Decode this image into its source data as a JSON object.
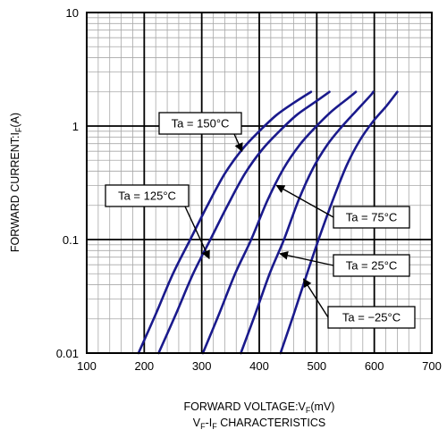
{
  "chart_data": {
    "type": "line",
    "title": "V_F-I_F CHARACTERISTICS",
    "title_main": "V",
    "title_sub": "F",
    "title_mid": "-I",
    "title_sub2": "F",
    "title_tail": " CHARACTERISTICS",
    "xlabel_main": "FORWARD VOLTAGE:V",
    "xlabel_sub": "F",
    "xlabel_tail": "(mV)",
    "ylabel_main": "FORWARD CURRENT:I",
    "ylabel_sub": "F",
    "ylabel_tail": "(A)",
    "xlim": [
      100,
      700
    ],
    "ylim": [
      0.01,
      10
    ],
    "y_scale": "log",
    "grid": true,
    "x_ticks": [
      100,
      200,
      300,
      400,
      500,
      600,
      700
    ],
    "x_tick_labels": [
      "100",
      "200",
      "300",
      "400",
      "500",
      "600",
      "700"
    ],
    "y_ticks": [
      0.01,
      0.1,
      1,
      10
    ],
    "y_tick_labels": [
      "0.01",
      "0.1",
      "1",
      "10"
    ],
    "line_color": "#1a1a8c",
    "series": [
      {
        "name": "Ta = 150°C",
        "x": [
          190,
          220,
          250,
          280,
          310,
          340,
          370,
          400,
          430,
          460,
          490
        ],
        "y": [
          0.01,
          0.022,
          0.05,
          0.1,
          0.2,
          0.38,
          0.62,
          0.9,
          1.25,
          1.6,
          2.0
        ]
      },
      {
        "name": "Ta = 125°C",
        "x": [
          225,
          255,
          285,
          315,
          345,
          375,
          405,
          435,
          465,
          495,
          522
        ],
        "y": [
          0.01,
          0.022,
          0.05,
          0.1,
          0.2,
          0.38,
          0.62,
          0.9,
          1.25,
          1.6,
          2.0
        ]
      },
      {
        "name": "Ta = 75°C",
        "x": [
          302,
          330,
          358,
          386,
          414,
          442,
          470,
          498,
          526,
          554,
          568
        ],
        "y": [
          0.01,
          0.022,
          0.05,
          0.1,
          0.22,
          0.42,
          0.68,
          0.98,
          1.35,
          1.75,
          2.0
        ]
      },
      {
        "name": "Ta = 25°C",
        "x": [
          368,
          393,
          418,
          443,
          468,
          493,
          518,
          543,
          568,
          593,
          598
        ],
        "y": [
          0.01,
          0.022,
          0.05,
          0.1,
          0.22,
          0.42,
          0.68,
          0.98,
          1.35,
          1.85,
          2.0
        ]
      },
      {
        "name": "Ta = −25°C",
        "x": [
          437,
          460,
          483,
          506,
          529,
          552,
          575,
          598,
          621,
          640
        ],
        "y": [
          0.01,
          0.022,
          0.05,
          0.11,
          0.23,
          0.45,
          0.75,
          1.1,
          1.5,
          2.0
        ]
      }
    ],
    "annotations": [
      {
        "text": "Ta = 150°C",
        "target": [
          370,
          0.6
        ]
      },
      {
        "text": "Ta = 125°C",
        "target": [
          313,
          0.068
        ]
      },
      {
        "text": "Ta = 75°C",
        "target": [
          430,
          0.3
        ]
      },
      {
        "text": "Ta = 25°C",
        "target": [
          436,
          0.075
        ]
      },
      {
        "text": "Ta = −25°C",
        "target": [
          477,
          0.045
        ]
      }
    ]
  }
}
